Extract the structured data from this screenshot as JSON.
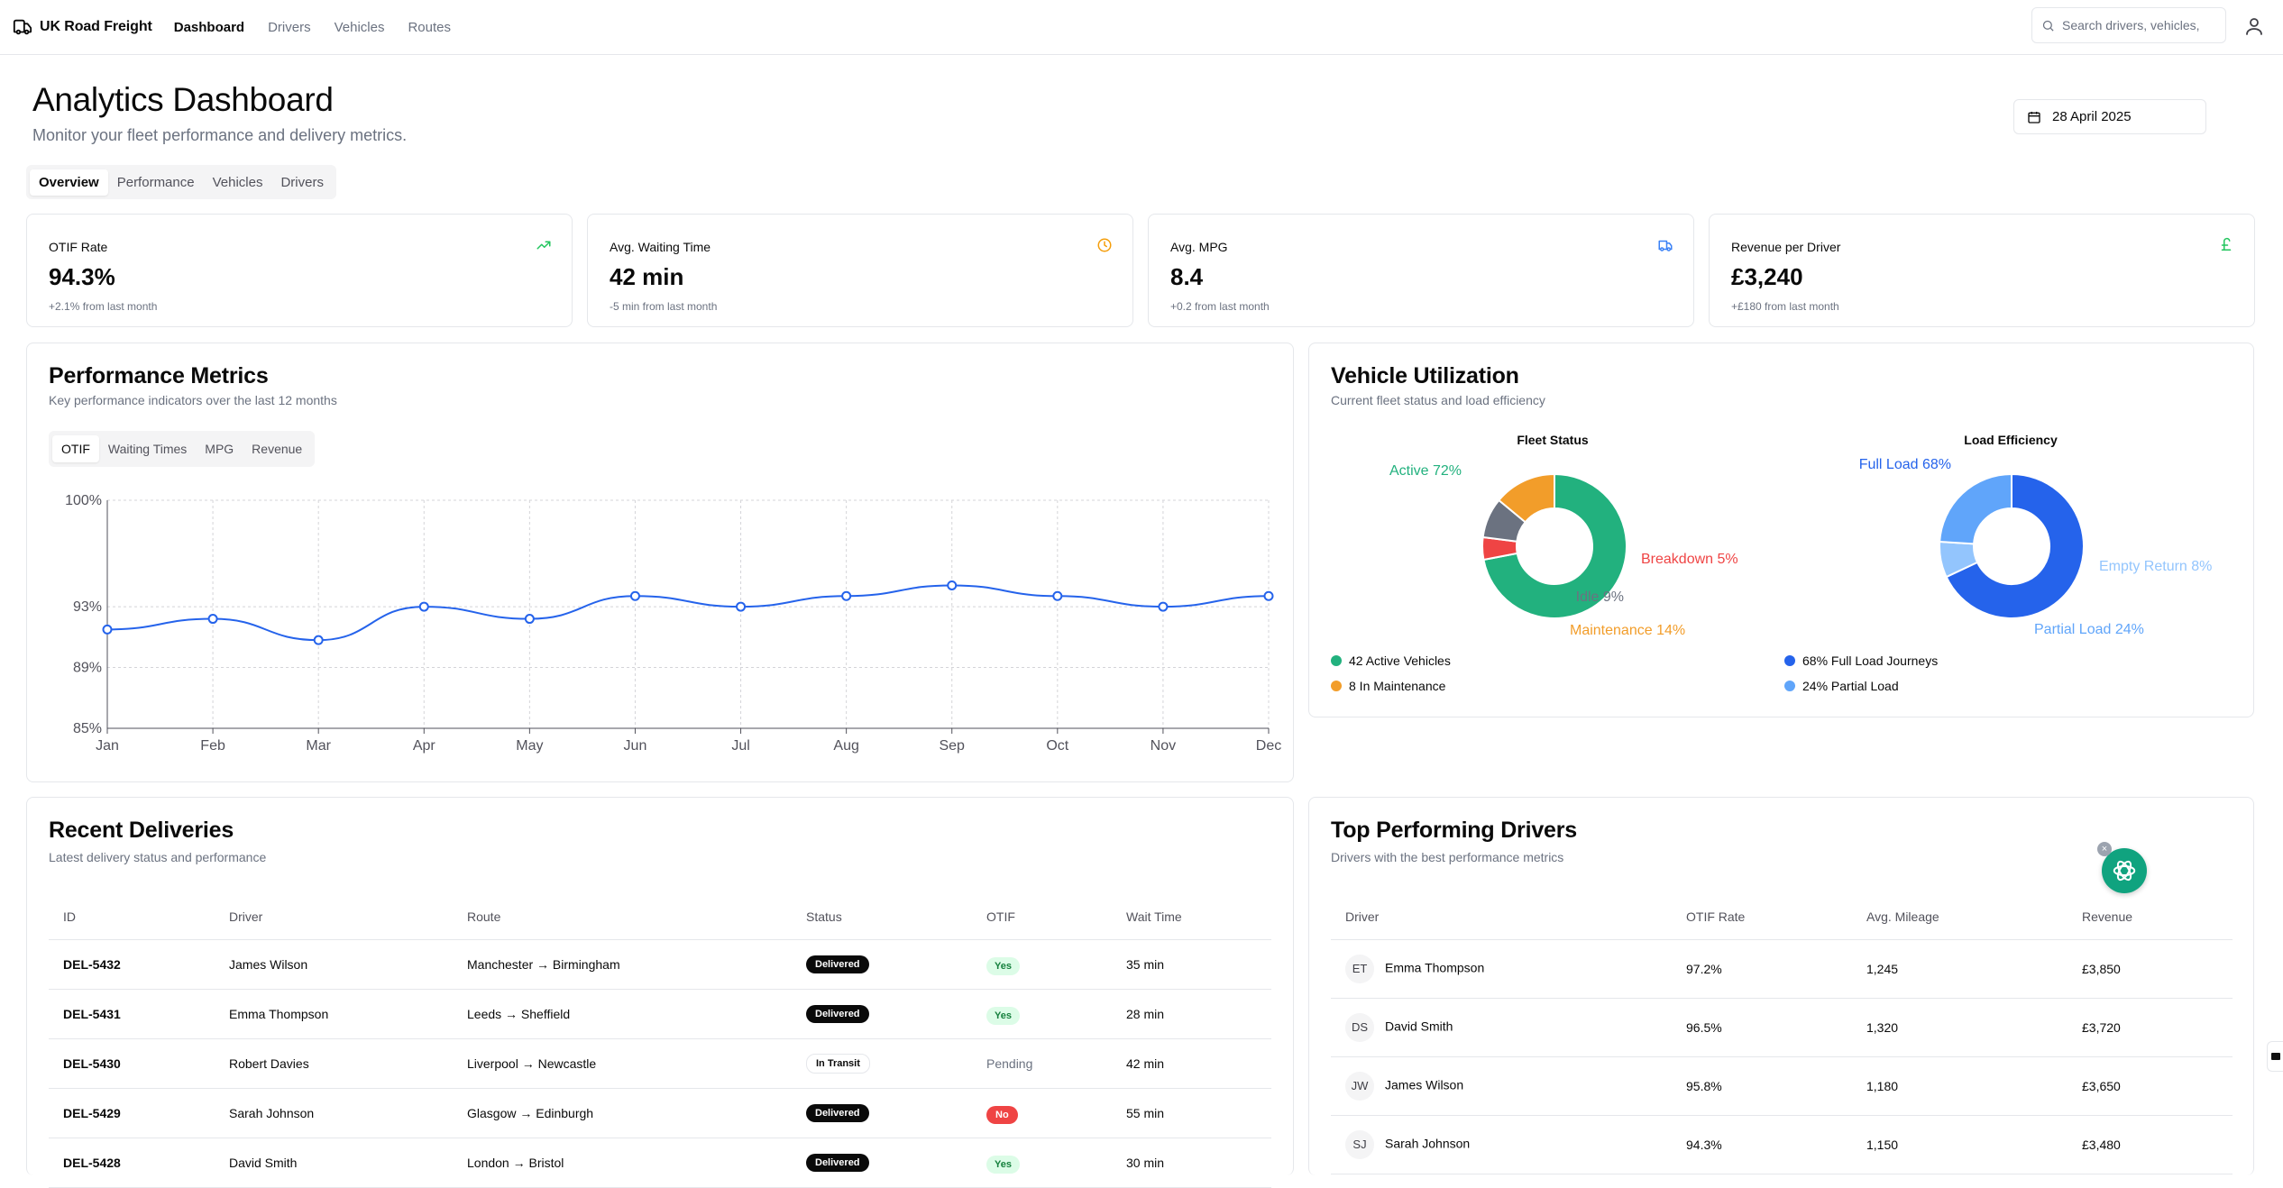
{
  "nav": {
    "brand": "UK Road Freight",
    "links": [
      "Dashboard",
      "Drivers",
      "Vehicles",
      "Routes"
    ],
    "search_placeholder": "Search drivers, vehicles,"
  },
  "header": {
    "title": "Analytics Dashboard",
    "subtitle": "Monitor your fleet performance and delivery metrics.",
    "date": "28 April 2025",
    "tabs": [
      "Overview",
      "Performance",
      "Vehicles",
      "Drivers"
    ]
  },
  "kpis": [
    {
      "title": "OTIF Rate",
      "value": "94.3%",
      "change": "+2.1% from last month",
      "icon": "trending-up-icon",
      "color": "#22c55e"
    },
    {
      "title": "Avg. Waiting Time",
      "value": "42 min",
      "change": "-5 min from last month",
      "icon": "clock-icon",
      "color": "#f59e0b"
    },
    {
      "title": "Avg. MPG",
      "value": "8.4",
      "change": "+0.2 from last month",
      "icon": "truck-icon",
      "color": "#3b82f6"
    },
    {
      "title": "Revenue per Driver",
      "value": "£3,240",
      "change": "+£180 from last month",
      "icon": "pound-icon",
      "color": "#22c55e"
    }
  ],
  "performance": {
    "title": "Performance Metrics",
    "subtitle": "Key performance indicators over the last 12 months",
    "tabs": [
      "OTIF",
      "Waiting Times",
      "MPG",
      "Revenue"
    ]
  },
  "chart_data": [
    {
      "type": "line",
      "categories": [
        "Jan",
        "Feb",
        "Mar",
        "Apr",
        "May",
        "Jun",
        "Jul",
        "Aug",
        "Sep",
        "Oct",
        "Nov",
        "Dec"
      ],
      "values": [
        91.5,
        92.2,
        90.8,
        93.0,
        92.2,
        93.7,
        93.0,
        93.7,
        94.4,
        93.7,
        93.0,
        93.7
      ],
      "yticks": [
        "85%",
        "89%",
        "93%",
        "100%"
      ],
      "ylim": [
        85,
        100
      ],
      "color": "#2563eb",
      "grid": true
    },
    {
      "type": "pie",
      "title": "Fleet Status",
      "labels": [
        "Active 72%",
        "Breakdown 5%",
        "Idle 9%",
        "Maintenance 14%"
      ],
      "values": [
        72,
        5,
        9,
        14
      ],
      "colors": [
        "#22b17e",
        "#ef4444",
        "#6b7280",
        "#f29d2a"
      ]
    },
    {
      "type": "pie",
      "title": "Load Efficiency",
      "labels": [
        "Full Load 68%",
        "Empty Return 8%",
        "Partial Load 24%"
      ],
      "values": [
        68,
        8,
        24
      ],
      "colors": [
        "#2563eb",
        "#93c5fd",
        "#60a5fa"
      ]
    }
  ],
  "utilization": {
    "title": "Vehicle Utilization",
    "subtitle": "Current fleet status and load efficiency",
    "legend_left": [
      {
        "label": "42 Active Vehicles",
        "color": "#22b17e"
      },
      {
        "label": "8 In Maintenance",
        "color": "#f29d2a"
      }
    ],
    "legend_right": [
      {
        "label": "68% Full Load Journeys",
        "color": "#2563eb"
      },
      {
        "label": "24% Partial Load",
        "color": "#60a5fa"
      }
    ]
  },
  "deliveries": {
    "title": "Recent Deliveries",
    "subtitle": "Latest delivery status and performance",
    "columns": [
      "ID",
      "Driver",
      "Route",
      "Status",
      "OTIF",
      "Wait Time"
    ],
    "rows": [
      {
        "id": "DEL-5432",
        "driver": "James Wilson",
        "route": "Manchester → Birmingham",
        "status": "Delivered",
        "otif": "Yes",
        "wait": "35 min"
      },
      {
        "id": "DEL-5431",
        "driver": "Emma Thompson",
        "route": "Leeds → Sheffield",
        "status": "Delivered",
        "otif": "Yes",
        "wait": "28 min"
      },
      {
        "id": "DEL-5430",
        "driver": "Robert Davies",
        "route": "Liverpool → Newcastle",
        "status": "In Transit",
        "otif": "Pending",
        "wait": "42 min"
      },
      {
        "id": "DEL-5429",
        "driver": "Sarah Johnson",
        "route": "Glasgow → Edinburgh",
        "status": "Delivered",
        "otif": "No",
        "wait": "55 min"
      },
      {
        "id": "DEL-5428",
        "driver": "David Smith",
        "route": "London → Bristol",
        "status": "Delivered",
        "otif": "Yes",
        "wait": "30 min"
      }
    ]
  },
  "drivers": {
    "title": "Top Performing Drivers",
    "subtitle": "Drivers with the best performance metrics",
    "columns": [
      "Driver",
      "OTIF Rate",
      "Avg. Mileage",
      "Revenue"
    ],
    "rows": [
      {
        "initials": "ET",
        "name": "Emma Thompson",
        "otif": "97.2%",
        "mileage": "1,245",
        "revenue": "£3,850"
      },
      {
        "initials": "DS",
        "name": "David Smith",
        "otif": "96.5%",
        "mileage": "1,320",
        "revenue": "£3,720"
      },
      {
        "initials": "JW",
        "name": "James Wilson",
        "otif": "95.8%",
        "mileage": "1,180",
        "revenue": "£3,650"
      },
      {
        "initials": "SJ",
        "name": "Sarah Johnson",
        "otif": "94.3%",
        "mileage": "1,150",
        "revenue": "£3,480"
      }
    ]
  }
}
